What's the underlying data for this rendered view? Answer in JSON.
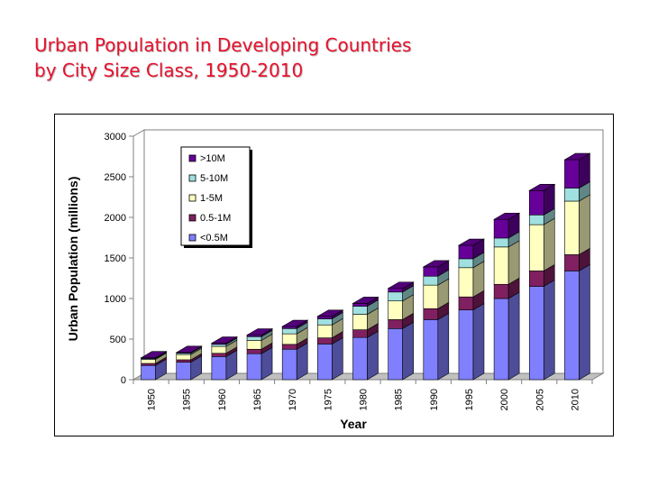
{
  "slide": {
    "title_line1": "Urban Population in Developing Countries",
    "title_line2": "by City Size Class, 1950-2010"
  },
  "chart_data": {
    "type": "bar",
    "stacked": true,
    "three_d": true,
    "xlabel": "Year",
    "ylabel": "Urban Population (millions)",
    "ylim": [
      0,
      3000
    ],
    "yticks": [
      0,
      500,
      1000,
      1500,
      2000,
      2500,
      3000
    ],
    "grid": false,
    "legend_position": "top-left inside plot",
    "categories": [
      "1950",
      "1955",
      "1960",
      "1965",
      "1970",
      "1975",
      "1980",
      "1985",
      "1990",
      "1995",
      "2000",
      "2005",
      "2010"
    ],
    "series": [
      {
        "name": "<0.5M",
        "color": "#8080ff",
        "values": [
          175,
          215,
          285,
          320,
          375,
          440,
          520,
          630,
          740,
          860,
          1000,
          1150,
          1340
        ]
      },
      {
        "name": "0.5-1M",
        "color": "#802060",
        "values": [
          25,
          30,
          40,
          55,
          60,
          75,
          95,
          110,
          135,
          160,
          175,
          190,
          200
        ]
      },
      {
        "name": "1-5M",
        "color": "#ffffc0",
        "values": [
          50,
          65,
          85,
          110,
          130,
          160,
          190,
          230,
          290,
          360,
          460,
          570,
          660
        ]
      },
      {
        "name": "5-10M",
        "color": "#a0e0e0",
        "values": [
          10,
          15,
          25,
          45,
          65,
          75,
          100,
          110,
          110,
          110,
          110,
          120,
          160
        ]
      },
      {
        "name": ">10M",
        "color": "#660099",
        "values": [
          10,
          10,
          15,
          20,
          25,
          30,
          35,
          45,
          115,
          165,
          230,
          300,
          350
        ]
      }
    ]
  }
}
